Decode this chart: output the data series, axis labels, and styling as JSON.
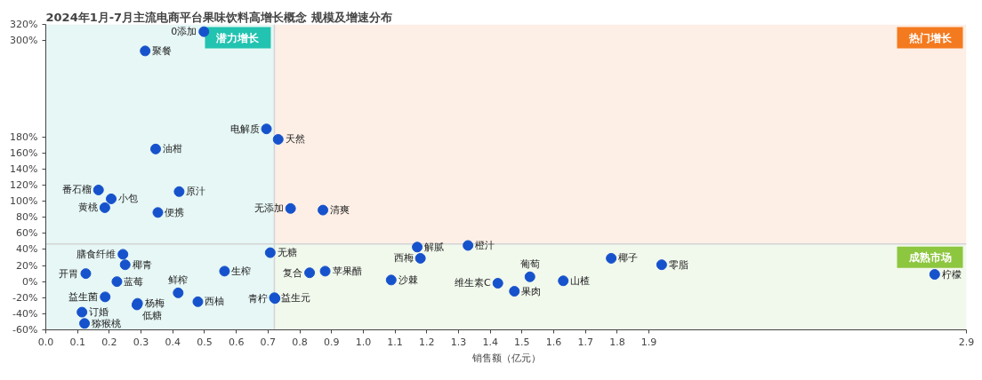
{
  "chart_data": {
    "type": "scatter",
    "title": "2024年1月-7月主流电商平台果味饮料高增长概念 规模及增速分布",
    "xlabel": "销售额（亿元）",
    "xlim": [
      0,
      2.9
    ],
    "ylim": [
      -60,
      320
    ],
    "xticks": [
      {
        "value": 0,
        "label": "0.0"
      },
      0.1,
      0.2,
      0.3,
      0.4,
      0.5,
      0.6,
      0.7,
      0.8,
      0.9,
      {
        "value": 1,
        "label": "1.0"
      },
      1.1,
      1.2,
      1.3,
      1.4,
      1.5,
      1.6,
      1.7,
      1.8,
      1.9,
      2.9
    ],
    "yticks": [
      {
        "value": -60,
        "label": "-60%"
      },
      {
        "value": -40,
        "label": "-40%"
      },
      {
        "value": -20,
        "label": "-20%"
      },
      {
        "value": 0,
        "label": "0%"
      },
      {
        "value": 20,
        "label": "20%"
      },
      {
        "value": 40,
        "label": "40%"
      },
      {
        "value": 60,
        "label": "60%"
      },
      {
        "value": 80,
        "label": "80%"
      },
      {
        "value": 100,
        "label": "100%"
      },
      {
        "value": 120,
        "label": "120%"
      },
      {
        "value": 140,
        "label": "140%"
      },
      {
        "value": 160,
        "label": "160%"
      },
      {
        "value": 180,
        "label": "180%"
      },
      {
        "value": 300,
        "label": "300%"
      },
      {
        "value": 320,
        "label": "320%"
      }
    ],
    "marker": "circle",
    "bands": [
      {
        "axis": "y",
        "from": -60,
        "to": 47,
        "color": "#f1f8ec"
      },
      {
        "axis": "y",
        "from": 47,
        "to": 320,
        "color": "#fdefe6"
      },
      {
        "axis": "x",
        "from": 0,
        "to": 0.72,
        "color": "#e6f7f5"
      }
    ],
    "ref_lines": [
      {
        "axis": "x",
        "value": 0.72
      },
      {
        "axis": "y",
        "value": 47
      }
    ],
    "series": [
      {
        "color": "#1652cc",
        "x": [
          0.313,
          0.498,
          0.695,
          0.732,
          0.346,
          0.166,
          0.206,
          0.186,
          0.42,
          0.353,
          0.771,
          0.873,
          0.243,
          0.25,
          0.126,
          0.224,
          0.187,
          0.114,
          0.122,
          0.289,
          0.287,
          0.417,
          0.479,
          0.563,
          0.707,
          0.72,
          0.722,
          0.831,
          0.88,
          1.088,
          1.17,
          1.18,
          1.33,
          1.424,
          1.476,
          1.525,
          1.63,
          1.781,
          1.94,
          2.8
        ],
        "values": [
          287,
          311,
          190,
          177,
          165,
          114,
          103,
          92,
          112,
          86,
          91,
          89,
          34,
          21,
          10,
          0,
          -19,
          -38,
          -52,
          -27,
          -29,
          -14,
          -25,
          13,
          36,
          -20,
          -21,
          11,
          13,
          2,
          43,
          29,
          45,
          -2,
          -12,
          6,
          1,
          29,
          21,
          9
        ]
      }
    ],
    "annotations": [
      "潜力增长",
      "热门增长",
      "成熟市场",
      {
        "text": "聚餐",
        "x": 0.313,
        "y": 287
      },
      {
        "text": "0添加",
        "x": 0.498,
        "y": 311
      },
      {
        "text": "电解质",
        "x": 0.695,
        "y": 190
      },
      {
        "text": "天然",
        "x": 0.732,
        "y": 177
      },
      {
        "text": "油柑",
        "x": 0.346,
        "y": 165
      },
      {
        "text": "番石榴",
        "x": 0.166,
        "y": 114
      },
      {
        "text": "小包",
        "x": 0.206,
        "y": 103
      },
      {
        "text": "黄桃",
        "x": 0.186,
        "y": 92
      },
      {
        "text": "原汁",
        "x": 0.42,
        "y": 112
      },
      {
        "text": "便携",
        "x": 0.353,
        "y": 86
      },
      {
        "text": "无添加",
        "x": 0.771,
        "y": 91
      },
      {
        "text": "清爽",
        "x": 0.873,
        "y": 89
      },
      {
        "text": "膳食纤维",
        "x": 0.243,
        "y": 34
      },
      {
        "text": "椰青",
        "x": 0.25,
        "y": 21
      },
      {
        "text": "开胃",
        "x": 0.126,
        "y": 10
      },
      {
        "text": "蓝莓",
        "x": 0.224,
        "y": 0
      },
      {
        "text": "益生菌",
        "x": 0.187,
        "y": -19
      },
      {
        "text": "订婚",
        "x": 0.114,
        "y": -38
      },
      {
        "text": "猕猴桃",
        "x": 0.122,
        "y": -52
      },
      {
        "text": "杨梅",
        "x": 0.289,
        "y": -27
      },
      {
        "text": "低糖",
        "x": 0.287,
        "y": -29
      },
      {
        "text": "鲜榨",
        "x": 0.417,
        "y": -14
      },
      {
        "text": "西柚",
        "x": 0.479,
        "y": -25
      },
      {
        "text": "生榨",
        "x": 0.563,
        "y": 13
      },
      {
        "text": "无糖",
        "x": 0.707,
        "y": 36
      },
      {
        "text": "益生元",
        "x": 0.72,
        "y": -20
      },
      {
        "text": "青柠",
        "x": 0.722,
        "y": -21
      },
      {
        "text": "复合",
        "x": 0.831,
        "y": 11
      },
      {
        "text": "苹果醋",
        "x": 0.88,
        "y": 13
      },
      {
        "text": "沙棘",
        "x": 1.088,
        "y": 2
      },
      {
        "text": "解腻",
        "x": 1.17,
        "y": 43
      },
      {
        "text": "西梅",
        "x": 1.18,
        "y": 29
      },
      {
        "text": "橙汁",
        "x": 1.33,
        "y": 45
      },
      {
        "text": "维生素C",
        "x": 1.424,
        "y": -2
      },
      {
        "text": "果肉",
        "x": 1.476,
        "y": -12
      },
      {
        "text": "葡萄",
        "x": 1.525,
        "y": 6
      },
      {
        "text": "山楂",
        "x": 1.63,
        "y": 1
      },
      {
        "text": "椰子",
        "x": 1.781,
        "y": 29
      },
      {
        "text": "零脂",
        "x": 1.94,
        "y": 21
      },
      {
        "text": "柠檬",
        "x": 2.8,
        "y": 9
      }
    ]
  }
}
